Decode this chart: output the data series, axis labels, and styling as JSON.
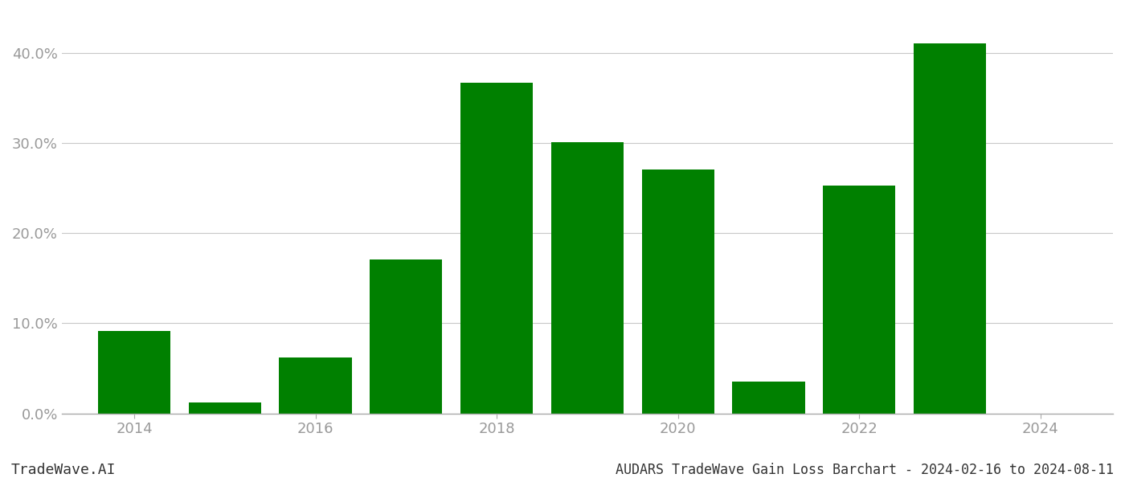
{
  "years": [
    2014,
    2015,
    2016,
    2017,
    2018,
    2019,
    2020,
    2021,
    2022,
    2023
  ],
  "values": [
    0.091,
    0.012,
    0.062,
    0.171,
    0.367,
    0.301,
    0.27,
    0.035,
    0.253,
    0.41
  ],
  "bar_color": "#008000",
  "background_color": "#ffffff",
  "grid_color": "#c8c8c8",
  "title": "AUDARS TradeWave Gain Loss Barchart - 2024-02-16 to 2024-08-11",
  "watermark": "TradeWave.AI",
  "xlim": [
    2013.2,
    2024.8
  ],
  "ylim": [
    0.0,
    0.445
  ],
  "yticks": [
    0.0,
    0.1,
    0.2,
    0.3,
    0.4
  ],
  "xticks": [
    2014,
    2016,
    2018,
    2020,
    2022,
    2024
  ],
  "bar_width": 0.8,
  "title_fontsize": 12,
  "tick_fontsize": 13,
  "watermark_fontsize": 13,
  "axis_color": "#aaaaaa",
  "tick_color": "#999999"
}
